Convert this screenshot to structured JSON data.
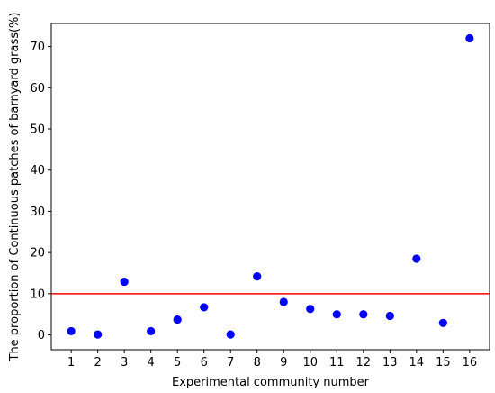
{
  "chart_data": {
    "type": "scatter",
    "title": "",
    "xlabel": "Experimental community number",
    "ylabel": "The proportion of Continuous patches of barnyard grass(%)",
    "x": [
      1,
      2,
      3,
      4,
      5,
      6,
      7,
      8,
      9,
      10,
      11,
      12,
      13,
      14,
      15,
      16
    ],
    "y": [
      0.9,
      0.1,
      12.9,
      0.9,
      3.7,
      6.7,
      0.1,
      14.2,
      8.0,
      6.3,
      5.0,
      5.0,
      4.6,
      18.5,
      2.9,
      72.0
    ],
    "xticks": [
      1,
      2,
      3,
      4,
      5,
      6,
      7,
      8,
      9,
      10,
      11,
      12,
      13,
      14,
      15,
      16
    ],
    "yticks": [
      0,
      10,
      20,
      30,
      40,
      50,
      60,
      70
    ],
    "xlim": [
      0.25,
      16.75
    ],
    "ylim": [
      -3.6,
      75.6
    ],
    "reference_line": {
      "y": 10,
      "color": "#ff0000"
    },
    "marker_color": "#0000ff",
    "grid": false
  }
}
